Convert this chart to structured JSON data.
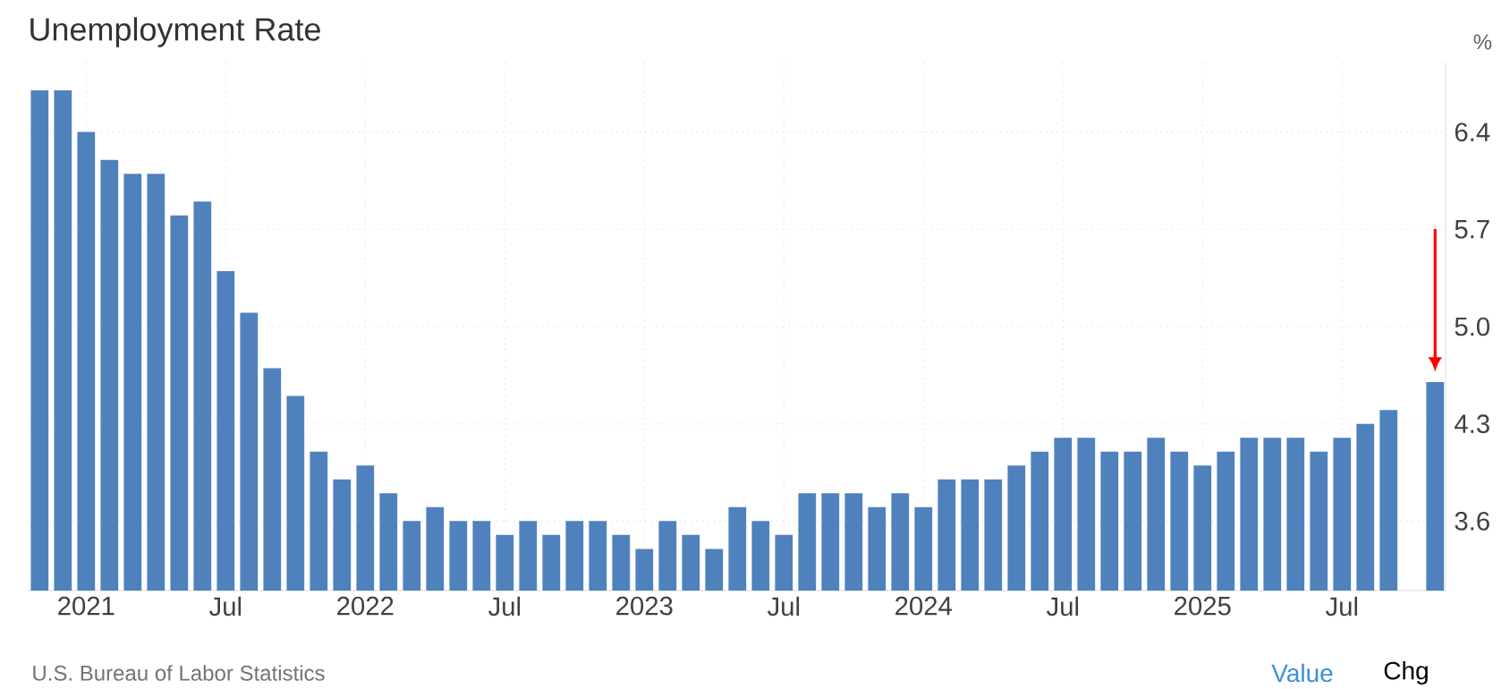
{
  "chart_data": {
    "type": "bar",
    "title": "Unemployment Rate",
    "ylabel": "%",
    "categories": [
      null,
      null,
      "2021",
      null,
      null,
      null,
      null,
      null,
      "Jul",
      null,
      null,
      null,
      null,
      null,
      "2022",
      null,
      null,
      null,
      null,
      null,
      "Jul",
      null,
      null,
      null,
      null,
      null,
      "2023",
      null,
      null,
      null,
      null,
      null,
      "Jul",
      null,
      null,
      null,
      null,
      null,
      "2024",
      null,
      null,
      null,
      null,
      null,
      "Jul",
      null,
      null,
      null,
      null,
      null,
      "2025",
      null,
      null,
      null,
      null,
      null,
      "Jul",
      null,
      null,
      null,
      null
    ],
    "values": [
      6.7,
      6.7,
      6.4,
      6.2,
      6.1,
      6.1,
      5.8,
      5.9,
      5.4,
      5.1,
      4.7,
      4.5,
      4.1,
      3.9,
      4.0,
      3.8,
      3.6,
      3.7,
      3.6,
      3.6,
      3.5,
      3.6,
      3.5,
      3.6,
      3.6,
      3.5,
      3.4,
      3.6,
      3.5,
      3.4,
      3.7,
      3.6,
      3.5,
      3.8,
      3.8,
      3.8,
      3.7,
      3.8,
      3.7,
      3.9,
      3.9,
      3.9,
      4.0,
      4.1,
      4.2,
      4.2,
      4.1,
      4.1,
      4.2,
      4.1,
      4.0,
      4.1,
      4.2,
      4.2,
      4.2,
      4.1,
      4.2,
      4.3,
      4.4,
      null,
      4.6
    ],
    "color": "#4f81bd",
    "ylim": [
      3.1,
      6.9
    ],
    "yticks": [
      3.6,
      4.3,
      {
        "value": 5.0,
        "label": "5.0"
      },
      5.7,
      6.4
    ],
    "grid": true,
    "annotations": [
      "U.S. Bureau of Labor Statistics",
      "Value",
      "Chg"
    ]
  }
}
